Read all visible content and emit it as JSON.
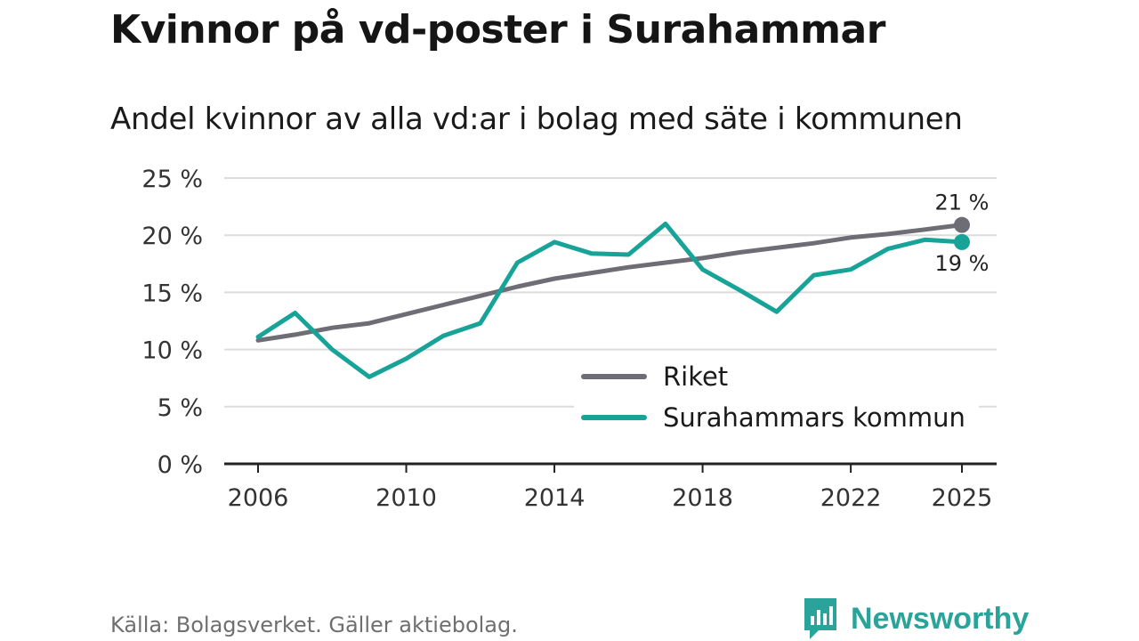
{
  "title": "Kvinnor på vd-poster i Surahammar",
  "subtitle": "Andel kvinnor av alla vd:ar i bolag med säte i kommunen",
  "source": "Källa: Bolagsverket. Gäller aktiebolag.",
  "brand": {
    "name": "Newsworthy",
    "logo_icon": "bar-chart-speech-bubble-icon",
    "color": "#2aa39a"
  },
  "chart_data": {
    "type": "line",
    "title": "Andel kvinnor av alla vd:ar i bolag med säte i kommunen",
    "xlabel": "",
    "ylabel": "",
    "xlim": [
      2006,
      2025
    ],
    "ylim": [
      0,
      25
    ],
    "xticks": [
      2006,
      2010,
      2014,
      2018,
      2022,
      2025
    ],
    "yticks": [
      0,
      5,
      10,
      15,
      20,
      25
    ],
    "yticks_labels": [
      "0 %",
      "5 %",
      "10 %",
      "15 %",
      "20 %",
      "25 %"
    ],
    "grid": true,
    "legend_position": "bottom-right",
    "x": [
      2006,
      2007,
      2008,
      2009,
      2010,
      2011,
      2012,
      2013,
      2014,
      2015,
      2016,
      2017,
      2018,
      2019,
      2020,
      2021,
      2022,
      2023,
      2024,
      2025
    ],
    "series": [
      {
        "name": "Riket",
        "color": "#6e6c75",
        "values": [
          10.8,
          11.3,
          11.9,
          12.3,
          13.1,
          13.9,
          14.7,
          15.5,
          16.2,
          16.7,
          17.2,
          17.6,
          18.0,
          18.5,
          18.9,
          19.3,
          19.8,
          20.1,
          20.5,
          20.9
        ],
        "end_label": "21 %"
      },
      {
        "name": "Surahammars kommun",
        "color": "#17a398",
        "values": [
          11.1,
          13.2,
          10.0,
          7.6,
          9.2,
          11.2,
          12.3,
          17.6,
          19.4,
          18.4,
          18.3,
          21.0,
          17.0,
          15.2,
          13.3,
          16.5,
          17.0,
          18.8,
          19.6,
          19.4
        ],
        "end_label": "19 %"
      }
    ]
  }
}
